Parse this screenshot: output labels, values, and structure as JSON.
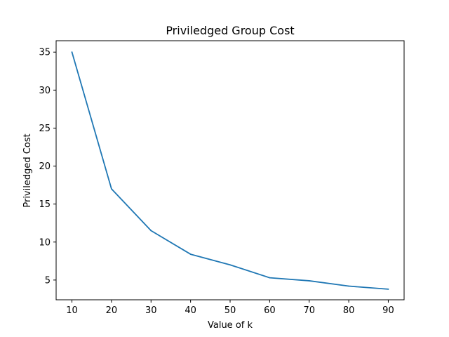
{
  "chart_data": {
    "type": "line",
    "title": "Priviledged Group Cost",
    "xlabel": "Value of k",
    "ylabel": "Priviledged Cost",
    "x": [
      10,
      20,
      30,
      40,
      50,
      60,
      70,
      80,
      90
    ],
    "xticks": [
      "10",
      "20",
      "30",
      "40",
      "50",
      "60",
      "70",
      "80",
      "90"
    ],
    "yticks": [
      "5",
      "10",
      "15",
      "20",
      "25",
      "30",
      "35"
    ],
    "xlim": [
      6,
      94
    ],
    "ylim": [
      2.4,
      36.5
    ],
    "grid": false,
    "series": [
      {
        "values": [
          35.0,
          17.0,
          11.5,
          8.4,
          7.0,
          5.3,
          4.9,
          4.2,
          3.8
        ],
        "color": "#1f77b4"
      }
    ]
  }
}
